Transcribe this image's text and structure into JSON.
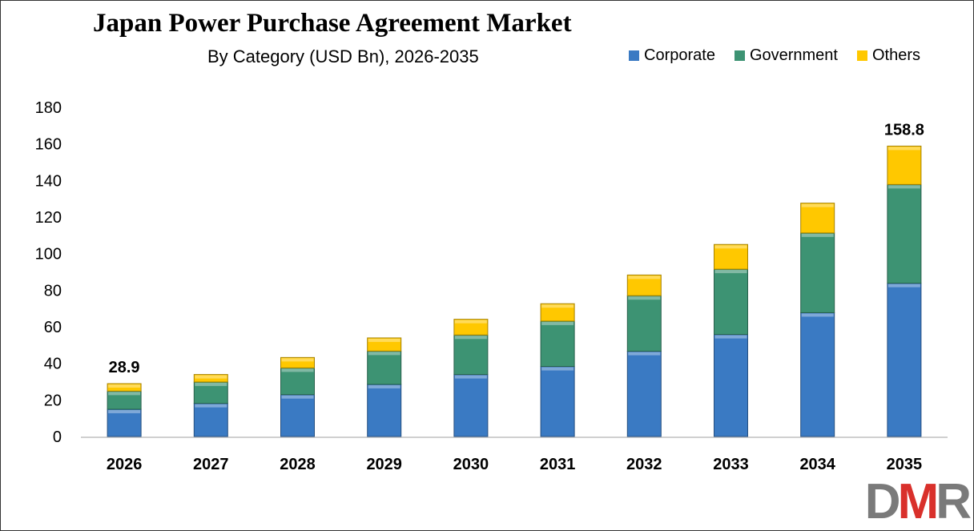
{
  "chart_data": {
    "type": "bar",
    "stacked": true,
    "title": "Japan Power Purchase Agreement Market",
    "subtitle": "By Category (USD Bn), 2026-2035",
    "xlabel": "",
    "ylabel": "",
    "ylim": [
      0,
      180
    ],
    "yticks": [
      0,
      20,
      40,
      60,
      80,
      100,
      120,
      140,
      160,
      180
    ],
    "grid": false,
    "legend_position": "top-right",
    "categories": [
      "2026",
      "2027",
      "2028",
      "2029",
      "2030",
      "2031",
      "2032",
      "2033",
      "2034",
      "2035"
    ],
    "series": [
      {
        "name": "Corporate",
        "color": "#3a7ac3",
        "values": [
          14.9,
          18.1,
          22.9,
          28.5,
          33.9,
          38.3,
          46.6,
          55.8,
          67.7,
          83.8
        ]
      },
      {
        "name": "Government",
        "color": "#3d9373",
        "values": [
          9.9,
          11.7,
          14.6,
          18.2,
          21.6,
          24.8,
          30.4,
          35.7,
          43.6,
          54.0
        ]
      },
      {
        "name": "Others",
        "color": "#ffc800",
        "values": [
          4.1,
          4.1,
          5.7,
          7.2,
          8.6,
          9.5,
          11.3,
          13.5,
          16.3,
          21.0
        ]
      }
    ],
    "data_labels": [
      {
        "category": "2026",
        "text": "28.9"
      },
      {
        "category": "2035",
        "text": "158.8"
      }
    ]
  },
  "logo": {
    "text": "DMR",
    "colors": [
      "#7a7a7a",
      "#d9302b",
      "#7a7a7a"
    ]
  }
}
